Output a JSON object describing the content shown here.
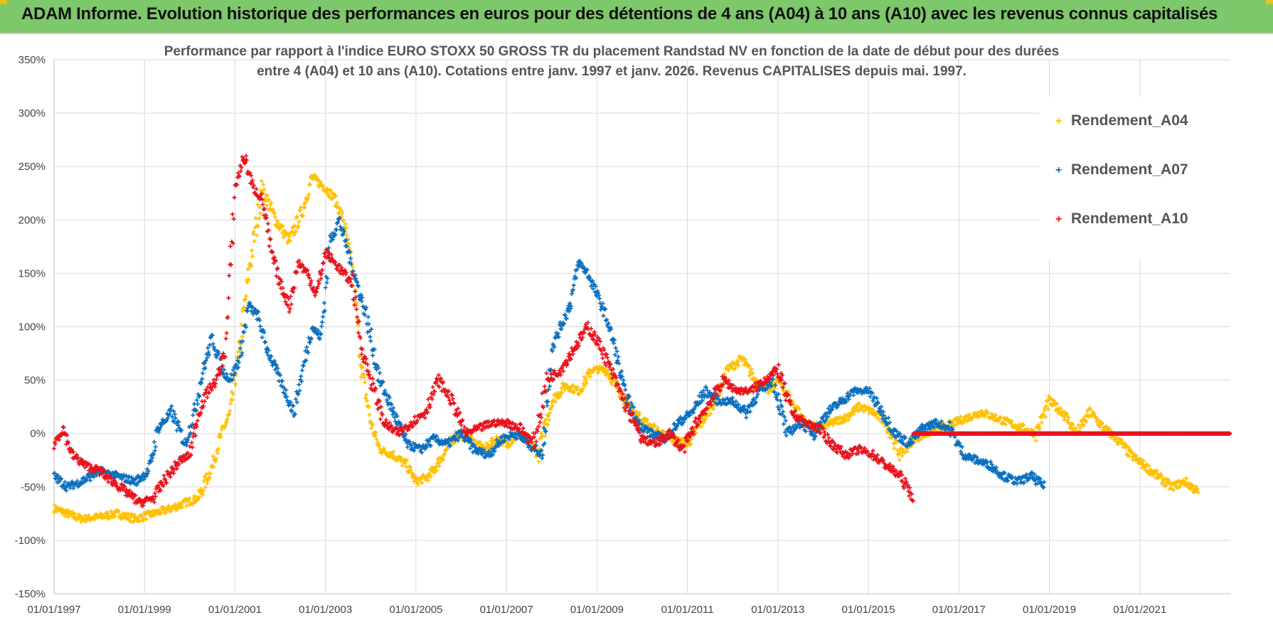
{
  "header": {
    "title": "ADAM Informe. Evolution historique des performances en euros pour des détentions de 4 ans (A04) à 10 ans (A10) avec les revenus connus capitalisés"
  },
  "chart_data": {
    "type": "scatter",
    "title_line1": "Performance par rapport à l'indice EURO STOXX 50 GROSS TR  du placement Randstad NV en fonction de la date de début pour des durées",
    "title_line2": "entre 4 (A04) et 10 ans (A10).  Cotations entre janv. 1997 et janv. 2026. Revenus CAPITALISES depuis mai. 1997.",
    "xlabel": "",
    "ylabel": "",
    "xlim": [
      1997.0,
      2023.0
    ],
    "ylim": [
      -150,
      350
    ],
    "y_ticks": [
      "350%",
      "300%",
      "250%",
      "200%",
      "150%",
      "100%",
      "50%",
      "0%",
      "-50%",
      "-100%",
      "-150%"
    ],
    "y_tick_values": [
      350,
      300,
      250,
      200,
      150,
      100,
      50,
      0,
      -50,
      -100,
      -150
    ],
    "x_ticks": [
      "01/01/1997",
      "01/01/1999",
      "01/01/2001",
      "01/01/2003",
      "01/01/2005",
      "01/01/2007",
      "01/01/2009",
      "01/01/2011",
      "01/01/2013",
      "01/01/2015",
      "01/01/2017",
      "01/01/2019",
      "01/01/2021"
    ],
    "x_tick_values": [
      1997,
      1999,
      2001,
      2003,
      2005,
      2007,
      2009,
      2011,
      2013,
      2015,
      2017,
      2019,
      2021
    ],
    "legend_position": "top-right",
    "series": [
      {
        "name": "Rendement_A04",
        "color": "#ffc000",
        "x": [
          1997.0,
          1997.3,
          1997.6,
          1998.0,
          1998.4,
          1998.8,
          1999.2,
          1999.6,
          1999.9,
          2000.2,
          2000.5,
          2000.7,
          2000.9,
          2001.1,
          2001.3,
          2001.6,
          2001.9,
          2002.2,
          2002.5,
          2002.7,
          2003.0,
          2003.2,
          2003.4,
          2003.6,
          2003.8,
          2004.0,
          2004.2,
          2004.5,
          2004.8,
          2005.0,
          2005.3,
          2005.6,
          2005.9,
          2006.2,
          2006.5,
          2006.8,
          2007.0,
          2007.3,
          2007.5,
          2007.7,
          2008.0,
          2008.3,
          2008.6,
          2008.9,
          2009.2,
          2009.5,
          2009.8,
          2010.1,
          2010.4,
          2010.7,
          2011.0,
          2011.3,
          2011.6,
          2011.9,
          2012.2,
          2012.5,
          2012.8,
          2013.0,
          2013.3,
          2013.6,
          2013.9,
          2014.2,
          2014.5,
          2014.8,
          2015.1,
          2015.4,
          2015.7,
          2016.0,
          2016.3,
          2016.6,
          2016.9,
          2017.2,
          2017.5,
          2017.8,
          2018.1,
          2018.4,
          2018.7,
          2019.0,
          2019.3,
          2019.6,
          2019.9,
          2020.2,
          2020.5,
          2020.8,
          2021.1,
          2021.4,
          2021.7,
          2022.0,
          2022.3
        ],
        "values": [
          -70,
          -75,
          -80,
          -78,
          -75,
          -80,
          -75,
          -70,
          -65,
          -60,
          -30,
          0,
          20,
          80,
          150,
          230,
          200,
          180,
          210,
          240,
          230,
          220,
          200,
          150,
          60,
          10,
          -15,
          -20,
          -30,
          -45,
          -40,
          -20,
          0,
          -5,
          -15,
          -5,
          -10,
          0,
          -5,
          -20,
          30,
          45,
          40,
          60,
          60,
          40,
          20,
          10,
          0,
          -5,
          -10,
          10,
          30,
          60,
          70,
          50,
          40,
          50,
          30,
          10,
          5,
          10,
          15,
          25,
          20,
          10,
          -20,
          -5,
          0,
          5,
          10,
          15,
          20,
          15,
          10,
          5,
          0,
          30,
          20,
          0,
          20,
          5,
          -5,
          -20,
          -30,
          -40,
          -50,
          -45,
          -55
        ]
      },
      {
        "name": "Rendement_A07",
        "color": "#0a6fbf",
        "x": [
          1997.0,
          1997.3,
          1997.6,
          1998.0,
          1998.4,
          1998.8,
          1999.1,
          1999.3,
          1999.6,
          1999.9,
          2000.1,
          2000.3,
          2000.5,
          2000.7,
          2000.9,
          2001.1,
          2001.3,
          2001.5,
          2001.7,
          2001.9,
          2002.1,
          2002.3,
          2002.5,
          2002.7,
          2002.9,
          2003.1,
          2003.3,
          2003.5,
          2003.7,
          2003.9,
          2004.2,
          2004.5,
          2004.8,
          2005.1,
          2005.4,
          2005.7,
          2006.0,
          2006.3,
          2006.6,
          2006.9,
          2007.2,
          2007.5,
          2007.8,
          2008.0,
          2008.2,
          2008.4,
          2008.6,
          2008.8,
          2009.0,
          2009.2,
          2009.4,
          2009.6,
          2009.9,
          2010.2,
          2010.5,
          2010.8,
          2011.1,
          2011.4,
          2011.7,
          2012.0,
          2012.3,
          2012.6,
          2012.9,
          2013.2,
          2013.5,
          2013.8,
          2014.1,
          2014.4,
          2014.7,
          2015.0,
          2015.3,
          2015.6,
          2015.9,
          2016.2,
          2016.5,
          2016.8,
          2017.1,
          2017.4,
          2017.7,
          2018.0,
          2018.3,
          2018.6,
          2018.9
        ],
        "values": [
          -40,
          -50,
          -45,
          -35,
          -40,
          -45,
          -35,
          5,
          20,
          -10,
          20,
          60,
          90,
          60,
          50,
          70,
          120,
          110,
          80,
          60,
          40,
          20,
          60,
          100,
          90,
          180,
          200,
          170,
          140,
          110,
          50,
          20,
          -10,
          -15,
          -5,
          -10,
          0,
          -15,
          -20,
          -5,
          0,
          -10,
          -20,
          80,
          100,
          120,
          160,
          150,
          130,
          110,
          80,
          40,
          10,
          0,
          -5,
          10,
          20,
          40,
          30,
          30,
          20,
          40,
          50,
          0,
          10,
          0,
          20,
          30,
          40,
          40,
          20,
          0,
          -10,
          5,
          10,
          5,
          -20,
          -25,
          -30,
          -40,
          -45,
          -40,
          -50
        ]
      },
      {
        "name": "Rendement_A10",
        "color": "#e8131c",
        "x": [
          1997.0,
          1997.2,
          1997.4,
          1997.7,
          1998.0,
          1998.3,
          1998.6,
          1998.9,
          1999.2,
          1999.5,
          1999.8,
          2000.0,
          2000.2,
          2000.4,
          2000.6,
          2000.8,
          2001.0,
          2001.2,
          2001.4,
          2001.6,
          2001.8,
          2002.0,
          2002.2,
          2002.4,
          2002.6,
          2002.8,
          2003.0,
          2003.2,
          2003.4,
          2003.6,
          2003.8,
          2004.0,
          2004.3,
          2004.6,
          2004.9,
          2005.2,
          2005.5,
          2005.8,
          2006.1,
          2006.4,
          2006.7,
          2007.0,
          2007.3,
          2007.6,
          2007.9,
          2008.2,
          2008.5,
          2008.8,
          2009.1,
          2009.4,
          2009.7,
          2010.0,
          2010.3,
          2010.6,
          2010.9,
          2011.2,
          2011.5,
          2011.8,
          2012.1,
          2012.4,
          2012.7,
          2013.0,
          2013.3,
          2013.6,
          2013.9,
          2014.2,
          2014.5,
          2014.8,
          2015.1,
          2015.4,
          2015.7,
          2016.0
        ],
        "values": [
          -10,
          5,
          -20,
          -30,
          -35,
          -45,
          -55,
          -65,
          -60,
          -40,
          -25,
          -20,
          20,
          40,
          50,
          80,
          230,
          260,
          230,
          220,
          170,
          140,
          120,
          160,
          150,
          130,
          170,
          160,
          150,
          140,
          80,
          50,
          10,
          0,
          10,
          20,
          50,
          30,
          0,
          5,
          10,
          10,
          5,
          -10,
          50,
          60,
          80,
          100,
          80,
          50,
          20,
          -5,
          -10,
          0,
          -15,
          10,
          30,
          50,
          40,
          40,
          50,
          60,
          20,
          10,
          5,
          -10,
          -20,
          -15,
          -20,
          -30,
          -40,
          -60
        ]
      },
      {
        "name": "Rendement_A10 (zero segment)",
        "color": "#e8131c",
        "x": [
          2016.0,
          2023.0
        ],
        "values": [
          0,
          0
        ]
      }
    ]
  },
  "legend": {
    "items": [
      {
        "label": "Rendement_A04",
        "color": "#ffc000",
        "marker": "+"
      },
      {
        "label": "Rendement_A07",
        "color": "#0a6fbf",
        "marker": "+"
      },
      {
        "label": "Rendement_A10",
        "color": "#e8131c",
        "marker": "+"
      }
    ]
  }
}
